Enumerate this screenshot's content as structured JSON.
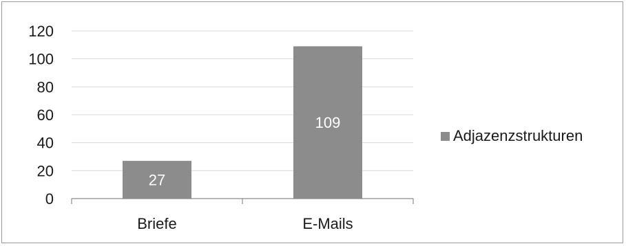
{
  "chart_data": {
    "type": "bar",
    "categories": [
      "Briefe",
      "E-Mails"
    ],
    "series": [
      {
        "name": "Adjazenzstrukturen",
        "values": [
          27,
          109
        ],
        "color": "#8c8c8c"
      }
    ],
    "data_labels": [
      "27",
      "109"
    ],
    "ylim": [
      0,
      120
    ],
    "yticks": [
      0,
      20,
      40,
      60,
      80,
      100,
      120
    ],
    "grid": true,
    "legend_position": "right"
  }
}
